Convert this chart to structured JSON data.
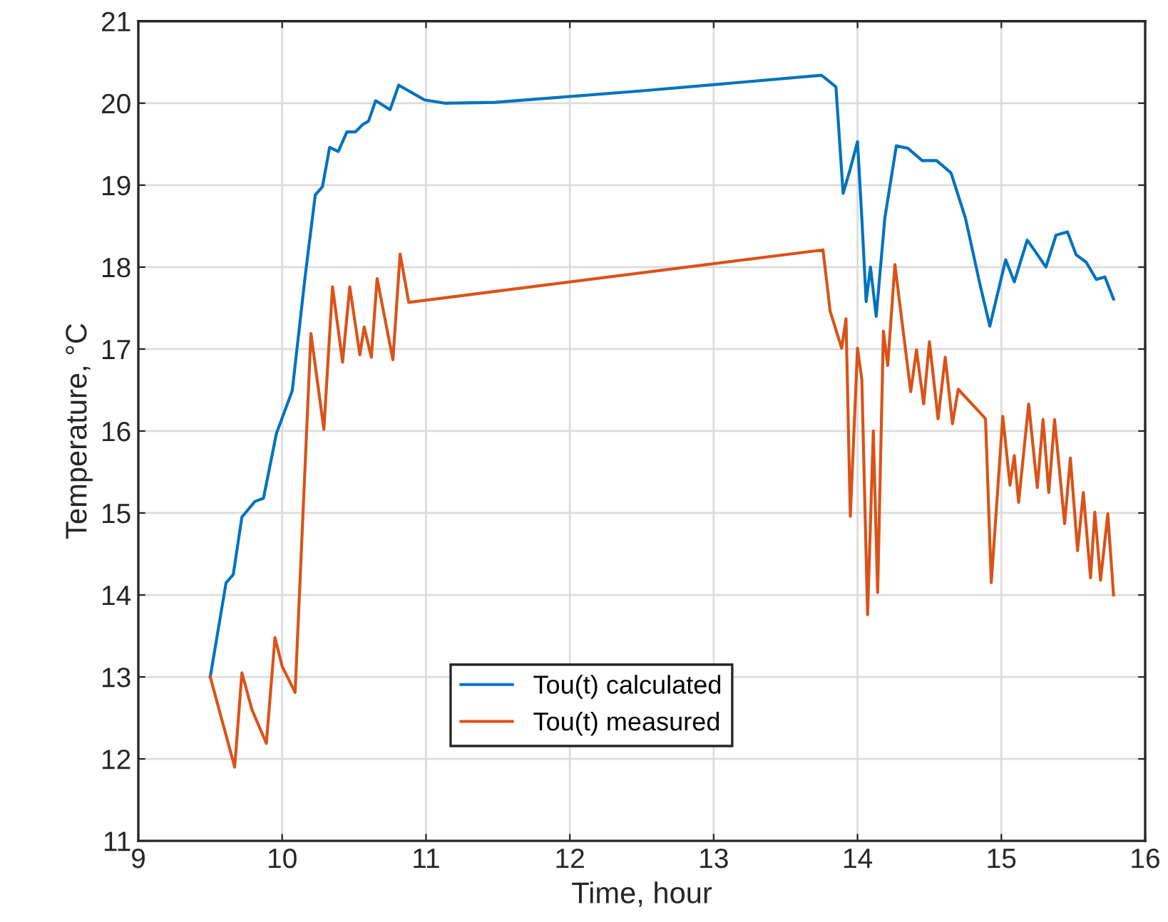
{
  "chart_data": {
    "type": "line",
    "xlabel": "Time, hour",
    "ylabel": "Temperature, °C",
    "xlim": [
      9,
      16
    ],
    "xticks": [
      9,
      10,
      11,
      12,
      13,
      14,
      15,
      16
    ],
    "ylim": [
      11,
      21
    ],
    "yticks": [
      11,
      12,
      13,
      14,
      15,
      16,
      17,
      18,
      19,
      20,
      21
    ],
    "grid": true,
    "legend": "bottom",
    "line_style": "solid",
    "marker": "none",
    "series": [
      {
        "name": "Tou(t) calculated",
        "color": "#0072bd",
        "x": [
          9.5,
          9.61,
          9.66,
          9.72,
          9.81,
          9.87,
          9.96,
          10.07,
          10.16,
          10.23,
          10.28,
          10.33,
          10.39,
          10.45,
          10.51,
          10.56,
          10.6,
          10.65,
          10.75,
          10.81,
          10.9,
          10.99,
          11.13,
          11.48,
          12.5,
          13.75,
          13.85,
          13.9,
          13.95,
          14.0,
          14.03,
          14.06,
          14.09,
          14.13,
          14.19,
          14.27,
          14.35,
          14.45,
          14.55,
          14.65,
          14.75,
          14.85,
          14.92,
          15.03,
          15.09,
          15.18,
          15.24,
          15.31,
          15.38,
          15.46,
          15.52,
          15.59,
          15.66,
          15.72,
          15.78
        ],
        "values": [
          13.0,
          14.15,
          14.25,
          14.95,
          15.14,
          15.18,
          15.97,
          16.49,
          17.89,
          18.88,
          18.98,
          19.46,
          19.41,
          19.65,
          19.65,
          19.74,
          19.78,
          20.03,
          19.92,
          20.22,
          20.13,
          20.04,
          20.0,
          20.01,
          20.15,
          20.34,
          20.2,
          18.9,
          19.2,
          19.53,
          18.6,
          17.58,
          18.0,
          17.4,
          18.6,
          19.48,
          19.45,
          19.3,
          19.3,
          19.15,
          18.6,
          17.8,
          17.28,
          18.09,
          17.82,
          18.33,
          18.18,
          18.0,
          18.39,
          18.43,
          18.15,
          18.06,
          17.85,
          17.88,
          17.61
        ]
      },
      {
        "name": "Tou(t) measured",
        "color": "#d95319",
        "x": [
          9.5,
          9.67,
          9.72,
          9.79,
          9.89,
          9.95,
          10.0,
          10.09,
          10.2,
          10.29,
          10.35,
          10.42,
          10.47,
          10.54,
          10.57,
          10.62,
          10.66,
          10.77,
          10.82,
          10.88,
          13.76,
          13.81,
          13.89,
          13.92,
          13.95,
          14.0,
          14.03,
          14.07,
          14.11,
          14.14,
          14.18,
          14.21,
          14.26,
          14.37,
          14.41,
          14.46,
          14.5,
          14.56,
          14.61,
          14.66,
          14.7,
          14.89,
          14.93,
          15.01,
          15.06,
          15.09,
          15.12,
          15.19,
          15.25,
          15.29,
          15.33,
          15.37,
          15.44,
          15.48,
          15.53,
          15.57,
          15.62,
          15.65,
          15.69,
          15.74,
          15.78
        ],
        "values": [
          13.0,
          11.9,
          13.05,
          12.6,
          12.19,
          13.48,
          13.13,
          12.81,
          17.19,
          16.02,
          17.76,
          16.84,
          17.76,
          16.93,
          17.27,
          16.9,
          17.86,
          16.87,
          18.16,
          17.57,
          18.21,
          17.46,
          17.01,
          17.37,
          14.96,
          17.01,
          16.63,
          13.76,
          16.0,
          14.03,
          17.22,
          16.8,
          18.03,
          16.48,
          16.99,
          16.33,
          17.09,
          16.15,
          16.9,
          16.09,
          16.51,
          16.15,
          14.15,
          16.18,
          15.34,
          15.7,
          15.13,
          16.33,
          15.31,
          16.14,
          15.25,
          16.14,
          14.87,
          15.67,
          14.54,
          15.25,
          14.21,
          15.01,
          14.18,
          14.99,
          14.0
        ]
      }
    ]
  }
}
